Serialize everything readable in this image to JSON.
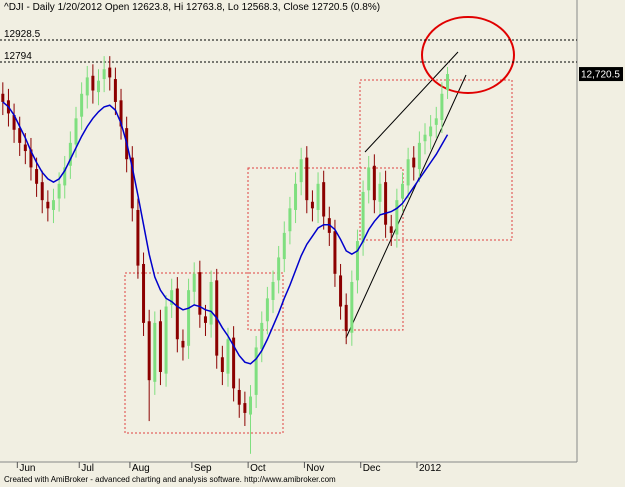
{
  "chart_data": {
    "type": "candlestick",
    "title": "^DJI - Daily 1/20/2012 Open 12623.8, Hi 12763.8, Lo 12568.3, Close 12720.5 (0.8%)",
    "footer": "Created with AmiBroker - advanced charting and analysis software. http://www.amibroker.com",
    "xlim": [
      -0.5,
      102
    ],
    "ylim": [
      10350,
      13173
    ],
    "xticks": [
      {
        "value": 4,
        "label": "Jun"
      },
      {
        "value": 15,
        "label": "Jul"
      },
      {
        "value": 24,
        "label": "Aug"
      },
      {
        "value": 35,
        "label": "Sep"
      },
      {
        "value": 45,
        "label": "Oct"
      },
      {
        "value": 55,
        "label": "Nov"
      },
      {
        "value": 65,
        "label": "Dec"
      },
      {
        "value": 75,
        "label": "2012"
      }
    ],
    "hlines": [
      12928.5,
      12794
    ],
    "last_price": {
      "value": 12720.5,
      "label": "12,720.5"
    },
    "candles": {
      "up_color": "#7fdf7f",
      "down_color": "#8b0000",
      "open": [
        12600,
        12560,
        12470,
        12390,
        12290,
        12260,
        12140,
        12060,
        11940,
        11890,
        11960,
        12040,
        12160,
        12290,
        12460,
        12590,
        12710,
        12610,
        12690,
        12760,
        12690,
        12560,
        12390,
        12210,
        11890,
        11560,
        11210,
        10840,
        11210,
        10890,
        11310,
        11410,
        11090,
        11060,
        11390,
        11510,
        11240,
        11190,
        11460,
        10990,
        10890,
        11110,
        10790,
        10710,
        10640,
        10760,
        11040,
        11210,
        11340,
        11460,
        11590,
        11760,
        11890,
        12060,
        12210,
        11940,
        11890,
        12060,
        11840,
        11760,
        11490,
        11310,
        11140,
        11460,
        11690,
        12010,
        12160,
        11940,
        12060,
        11790,
        11740,
        11960,
        12040,
        12210,
        12140,
        12310,
        12340,
        12410,
        12440,
        12623.8
      ],
      "high": [
        12670,
        12630,
        12540,
        12460,
        12360,
        12330,
        12210,
        12130,
        12010,
        12020,
        12120,
        12220,
        12370,
        12520,
        12670,
        12770,
        12780,
        12750,
        12830,
        12830,
        12760,
        12630,
        12460,
        12280,
        11960,
        11630,
        11280,
        11270,
        11280,
        11370,
        11470,
        11480,
        11160,
        11470,
        11570,
        11580,
        11310,
        11520,
        11530,
        11060,
        11170,
        11180,
        10860,
        10780,
        10820,
        11120,
        11270,
        11420,
        11520,
        11670,
        11820,
        11970,
        12120,
        12270,
        12280,
        12010,
        12120,
        12130,
        11910,
        11830,
        11560,
        11380,
        11520,
        11770,
        12070,
        12220,
        12230,
        12120,
        12130,
        11860,
        12020,
        12120,
        12270,
        12280,
        12370,
        12420,
        12470,
        12520,
        12670,
        12763.8
      ],
      "low": [
        12470,
        12400,
        12300,
        12220,
        12170,
        12070,
        11970,
        11870,
        11820,
        11810,
        11880,
        11960,
        12080,
        12210,
        12380,
        12510,
        12540,
        12530,
        12610,
        12620,
        12470,
        12320,
        12120,
        11820,
        11470,
        11120,
        10600,
        10760,
        10820,
        10810,
        11230,
        11020,
        10970,
        10980,
        11310,
        11170,
        11120,
        11110,
        10920,
        10820,
        10810,
        10720,
        10620,
        10570,
        10400,
        10680,
        10960,
        11130,
        11260,
        11380,
        11510,
        11680,
        11810,
        11980,
        11870,
        11820,
        11810,
        11770,
        11670,
        11420,
        11220,
        11070,
        11060,
        11380,
        11610,
        11930,
        11870,
        11860,
        11720,
        11670,
        11660,
        11880,
        11960,
        12070,
        12060,
        12230,
        12260,
        12330,
        12360,
        12568.3
      ],
      "close": [
        12550,
        12480,
        12380,
        12300,
        12250,
        12150,
        12050,
        11950,
        11900,
        11950,
        12050,
        12150,
        12300,
        12450,
        12600,
        12700,
        12620,
        12680,
        12750,
        12700,
        12550,
        12400,
        12200,
        11900,
        11550,
        11200,
        10850,
        11200,
        10900,
        11300,
        11400,
        11100,
        11050,
        11400,
        11500,
        11250,
        11200,
        11450,
        11000,
        10900,
        11100,
        10800,
        10700,
        10650,
        10750,
        11050,
        11200,
        11350,
        11450,
        11600,
        11750,
        11900,
        12050,
        12200,
        11950,
        11900,
        12050,
        11850,
        11750,
        11500,
        11300,
        11150,
        11450,
        11700,
        12000,
        12150,
        11950,
        12050,
        11800,
        11750,
        11950,
        12050,
        12200,
        12150,
        12300,
        12350,
        12400,
        12450,
        12600,
        12720.5
      ]
    },
    "ma": {
      "color": "#0000cc",
      "values": [
        12550,
        12520,
        12470,
        12400,
        12330,
        12250,
        12180,
        12120,
        12080,
        12060,
        12080,
        12130,
        12200,
        12270,
        12340,
        12400,
        12450,
        12490,
        12520,
        12530,
        12500,
        12420,
        12300,
        12150,
        11980,
        11800,
        11620,
        11480,
        11400,
        11350,
        11330,
        11300,
        11280,
        11290,
        11310,
        11300,
        11280,
        11270,
        11230,
        11170,
        11120,
        11060,
        11000,
        10960,
        10950,
        10980,
        11030,
        11100,
        11180,
        11260,
        11350,
        11430,
        11520,
        11610,
        11680,
        11730,
        11780,
        11800,
        11800,
        11770,
        11710,
        11640,
        11620,
        11640,
        11700,
        11770,
        11820,
        11860,
        11870,
        11880,
        11900,
        11930,
        11980,
        12030,
        12080,
        12130,
        12180,
        12230,
        12290,
        12350
      ]
    }
  }
}
